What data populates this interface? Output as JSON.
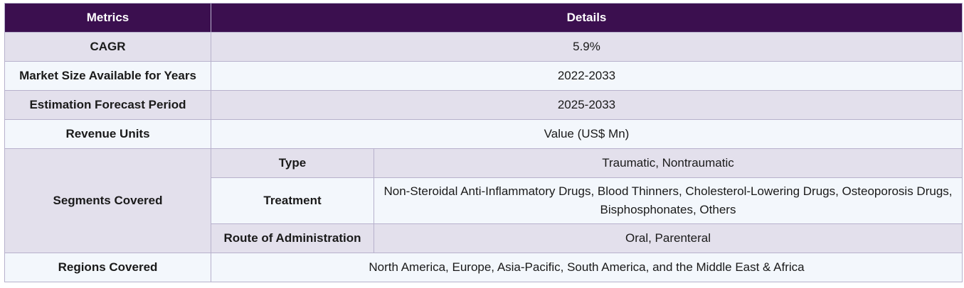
{
  "header": {
    "metrics": "Metrics",
    "details": "Details"
  },
  "rows": {
    "cagr": {
      "label": "CAGR",
      "value": "5.9%"
    },
    "market_size": {
      "label": "Market Size Available for Years",
      "value": "2022-2033"
    },
    "forecast": {
      "label": "Estimation Forecast Period",
      "value": "2025-2033"
    },
    "revenue": {
      "label": "Revenue Units",
      "value": "Value (US$ Mn)"
    },
    "segments": {
      "label": "Segments Covered",
      "type": {
        "label": "Type",
        "value": "Traumatic, Nontraumatic"
      },
      "treatment": {
        "label": "Treatment",
        "value": "Non-Steroidal Anti-Inflammatory Drugs, Blood Thinners, Cholesterol-Lowering Drugs, Osteoporosis Drugs, Bisphosphonates, Others"
      },
      "route": {
        "label": "Route of Administration",
        "value": "Oral, Parenteral"
      }
    },
    "regions": {
      "label": "Regions Covered",
      "value": "North America, Europe, Asia-Pacific, South America, and the Middle East & Africa"
    }
  },
  "colors": {
    "header_bg": "#3b0f4f",
    "header_text": "#ffffff",
    "row_shade": "#e3e0ec",
    "row_light": "#f3f7fc",
    "border": "#b7b1cc"
  }
}
